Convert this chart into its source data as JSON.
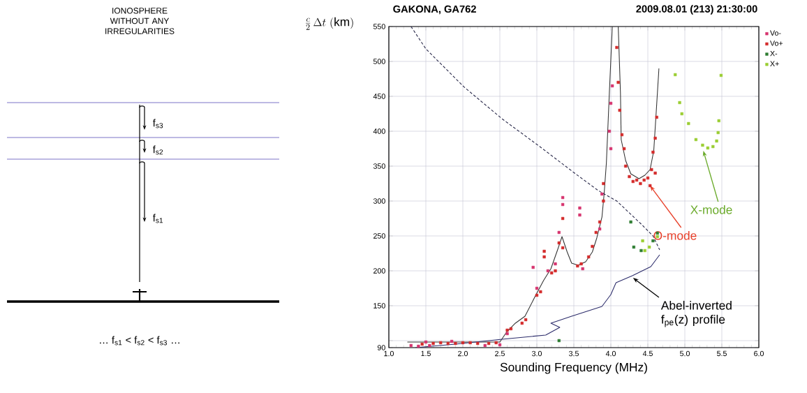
{
  "chart_data": [
    {
      "type": "other",
      "title": "IONOSPHERE WITHOUT ANY IRREGULARITIES",
      "annotations": [
        "f$_{s3}$",
        "f$_{s2}$",
        "f$_{s1}$",
        "… f$_{s1}$ < f$_{s2}$ < f$_{s3}$ …"
      ]
    },
    {
      "type": "scatter",
      "title": "GAKONA, GA762",
      "subtitle": "2009.08.01 (213) 21:30:00",
      "xlabel": "Sounding Frequency (MHz)",
      "ylabel": "\\frac{c}{2}\\,\\Delta t\\ \\mathrm{(km)}",
      "xlim": [
        1,
        6
      ],
      "ylim": [
        90,
        550
      ],
      "xticks": [
        {
          "value": 1,
          "label": "1.0"
        },
        {
          "value": 1.5,
          "label": "1.5"
        },
        {
          "value": 2,
          "label": "2.0"
        },
        {
          "value": 2.5,
          "label": "2.5"
        },
        {
          "value": 3,
          "label": "3.0"
        },
        {
          "value": 3.5,
          "label": "3.5"
        },
        {
          "value": 4,
          "label": "4.0"
        },
        {
          "value": 4.5,
          "label": "4.5"
        },
        {
          "value": 5,
          "label": "5.0"
        },
        {
          "value": 5.5,
          "label": "5.5"
        },
        {
          "value": 6,
          "label": "6.0"
        }
      ],
      "yticks": [
        90,
        {
          "value": 100,
          "label": null
        },
        150,
        200,
        250,
        300,
        350,
        400,
        450,
        500,
        550
      ],
      "grid": true,
      "legend": "right",
      "series": [
        {
          "name": "Vo-",
          "color": "#d6336e",
          "marker": "square",
          "x": [
            1.3,
            1.4,
            1.5,
            1.55,
            1.85,
            2.3,
            2.5,
            2.6,
            2.95,
            3.0,
            3.15,
            3.25,
            3.3,
            3.35,
            3.35,
            3.58,
            3.58,
            3.62,
            3.85,
            3.88,
            3.98,
            4.0,
            4.0,
            4.02
          ],
          "values": [
            93,
            92,
            98,
            93,
            99,
            93,
            94,
            110,
            205,
            175,
            200,
            210,
            255,
            295,
            305,
            280,
            290,
            203,
            260,
            310,
            400,
            375,
            440,
            465
          ]
        },
        {
          "name": "Vo+",
          "color": "#d42a2a",
          "marker": "square",
          "x": [
            1.45,
            1.6,
            1.7,
            1.8,
            1.9,
            2.0,
            2.1,
            2.2,
            2.35,
            2.45,
            2.6,
            2.65,
            2.8,
            2.85,
            3.0,
            3.05,
            3.1,
            3.1,
            3.2,
            3.25,
            3.3,
            3.35,
            3.35,
            3.55,
            3.6,
            3.7,
            3.75,
            3.8,
            3.85,
            3.9,
            3.9,
            4.08,
            4.1,
            4.12,
            4.15,
            4.18,
            4.2,
            4.25,
            4.3,
            4.35,
            4.4,
            4.45,
            4.5,
            4.55,
            4.57,
            4.6,
            4.62,
            4.6,
            4.53
          ],
          "values": [
            95,
            96,
            97,
            96,
            96,
            97,
            97,
            96,
            96,
            97,
            115,
            117,
            125,
            130,
            165,
            170,
            228,
            220,
            197,
            200,
            240,
            233,
            275,
            207,
            210,
            220,
            235,
            255,
            270,
            300,
            325,
            520,
            470,
            430,
            395,
            375,
            350,
            335,
            328,
            330,
            325,
            330,
            333,
            345,
            370,
            390,
            420,
            340,
            322
          ]
        },
        {
          "name": "X-",
          "color": "#2e7d32",
          "marker": "square",
          "x": [
            3.3,
            4.27,
            4.31,
            4.41,
            4.57,
            4.63
          ],
          "values": [
            100,
            270,
            234,
            229,
            243,
            254
          ]
        },
        {
          "name": "X+",
          "color": "#9acd32",
          "marker": "square",
          "x": [
            4.43,
            4.46,
            4.52,
            4.63,
            4.87,
            4.93,
            4.96,
            5.05,
            5.15,
            5.24,
            5.31,
            5.38,
            5.43,
            5.45,
            5.46,
            5.49
          ],
          "values": [
            243,
            229,
            234,
            249,
            481,
            441,
            425,
            411,
            388,
            380,
            376,
            378,
            386,
            398,
            415,
            480
          ]
        },
        {
          "type": "line",
          "color": "#333333",
          "marker": "none",
          "x": [
            1.25,
            2.5,
            2.59,
            2.71,
            2.84,
            2.97,
            3.09,
            3.19,
            3.28,
            3.34,
            3.41,
            3.47,
            3.56,
            3.66,
            3.75,
            3.81,
            3.88,
            3.91,
            3.94,
            3.98,
            4.02
          ],
          "values": [
            98,
            98,
            112,
            125,
            135,
            162,
            186,
            203,
            230,
            249,
            227,
            211,
            208,
            213,
            227,
            247,
            277,
            311,
            355,
            455,
            550
          ]
        },
        {
          "type": "line",
          "color": "#333333",
          "marker": "none",
          "x": [
            4.1,
            4.13,
            4.14,
            4.2,
            4.27,
            4.38,
            4.46,
            4.53,
            4.58,
            4.61,
            4.65
          ],
          "values": [
            550,
            455,
            388,
            358,
            339,
            332,
            337,
            345,
            372,
            422,
            490
          ]
        },
        {
          "type": "line",
          "color": "#222244",
          "marker": "none",
          "line_style": "dashed",
          "x": [
            1.3,
            1.5,
            2.02,
            2.54,
            3.04,
            3.51,
            3.83,
            4.08,
            4.41,
            4.57,
            4.66
          ],
          "values": [
            550,
            518,
            463,
            417,
            378,
            340,
            315,
            300,
            267,
            250,
            230
          ]
        },
        {
          "type": "line",
          "color": "#2b2b6a",
          "marker": "none",
          "x": [
            1.36,
            1.9,
            2.53,
            3.12,
            3.31,
            3.19,
            3.47,
            3.88,
            4.0,
            4.07,
            4.29,
            4.54,
            4.66
          ],
          "values": [
            90,
            95,
            102,
            108,
            119,
            125,
            135,
            149,
            166,
            183,
            193,
            206,
            223
          ]
        }
      ],
      "annotations": [
        {
          "text": "O-mode",
          "x": 4.53,
          "y": 322
        },
        {
          "text": "X-mode",
          "x": 5.25,
          "y": 372
        },
        {
          "text": "Abel-inverted f$_{pe}$(z) profile",
          "x": 4.3,
          "y": 190
        }
      ]
    }
  ]
}
